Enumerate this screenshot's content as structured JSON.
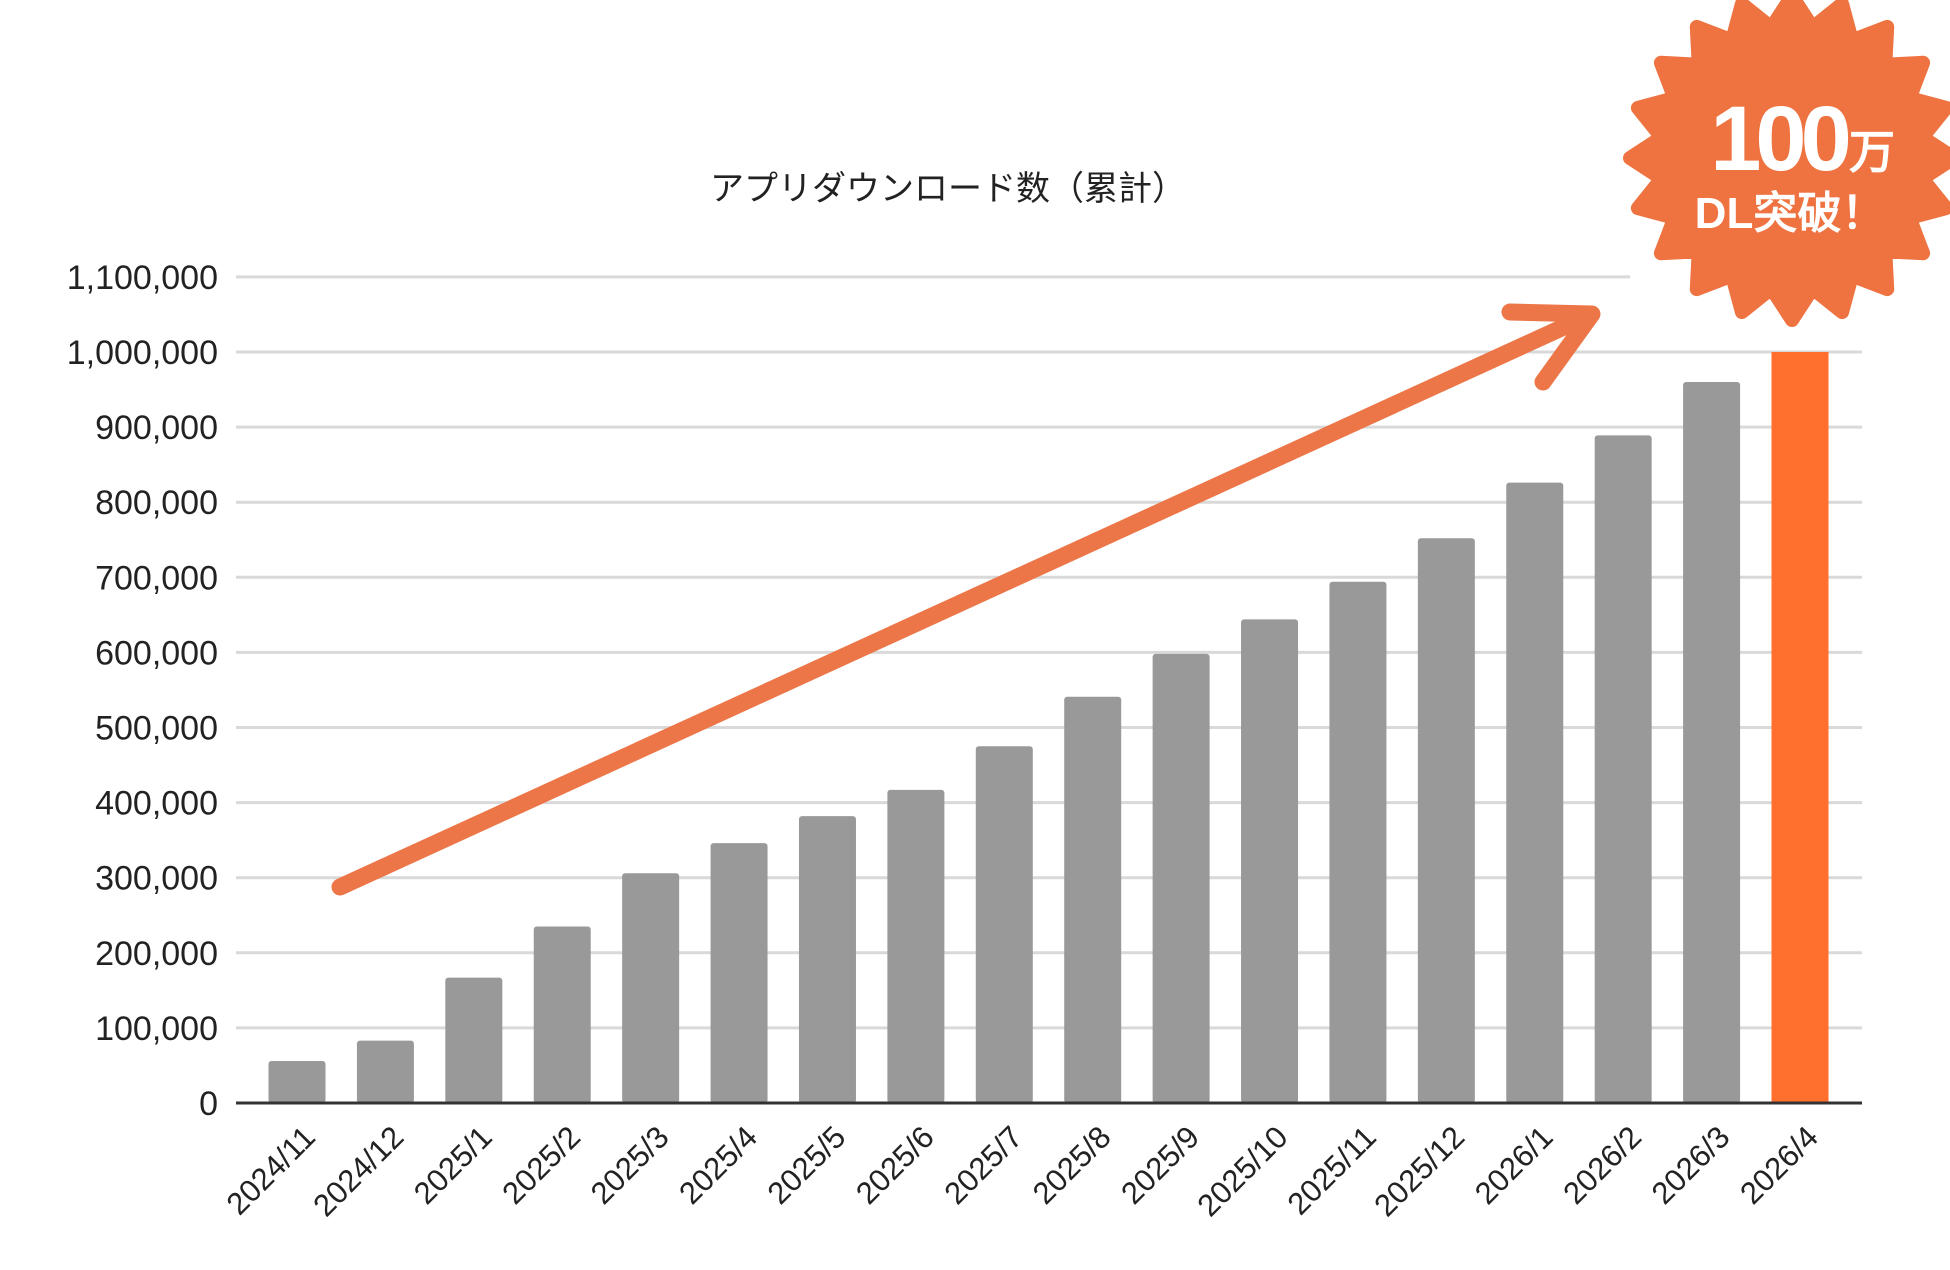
{
  "chart_data": {
    "type": "bar",
    "title": "アプリダウンロード数（累計）",
    "xlabel": "",
    "ylabel": "",
    "ylim": [
      0,
      1100000
    ],
    "yticks": [
      "0",
      "100,000",
      "200,000",
      "300,000",
      "400,000",
      "500,000",
      "600,000",
      "700,000",
      "800,000",
      "900,000",
      "1,000,000",
      "1,100,000"
    ],
    "ytick_values": [
      0,
      100000,
      200000,
      300000,
      400000,
      500000,
      600000,
      700000,
      800000,
      900000,
      1000000,
      1100000
    ],
    "grid": true,
    "categories": [
      "2024/11",
      "2024/12",
      "2025/1",
      "2025/2",
      "2025/3",
      "2025/4",
      "2025/5",
      "2025/6",
      "2025/7",
      "2025/8",
      "2025/9",
      "2025/10",
      "2025/11",
      "2025/12",
      "2026/1",
      "2026/2",
      "2026/3",
      "2026/4"
    ],
    "values": [
      56000,
      83000,
      167000,
      235000,
      306000,
      346000,
      382000,
      417000,
      475000,
      541000,
      598000,
      644000,
      694000,
      752000,
      826000,
      889000,
      960000,
      1000000
    ],
    "colors": {
      "bar": "#999999",
      "highlight_bar": "#FF6F2E",
      "arrow": "#EC7647",
      "badge": "#EE7340",
      "grid": "#D9D9D9",
      "axis": "#333333"
    },
    "highlight_category": "2026/4",
    "annotation": {
      "type": "trend-arrow",
      "badge": {
        "line1_number": "100",
        "line1_unit": "万",
        "line2": "DL突破！"
      }
    }
  }
}
